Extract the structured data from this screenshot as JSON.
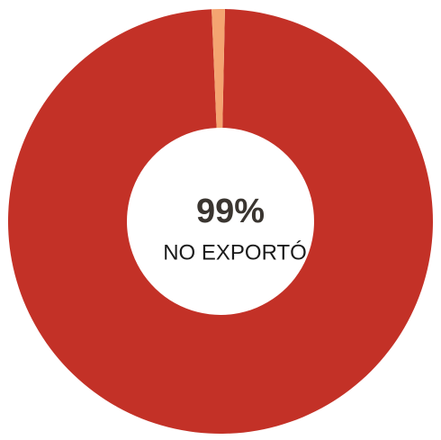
{
  "chart_data": {
    "type": "donut",
    "categories": [
      "NO EXPORTÓ",
      null
    ],
    "values": [
      99,
      1
    ],
    "value_labels": [
      "99%",
      null
    ],
    "colors": [
      "#c33127",
      "#f4a471"
    ]
  }
}
